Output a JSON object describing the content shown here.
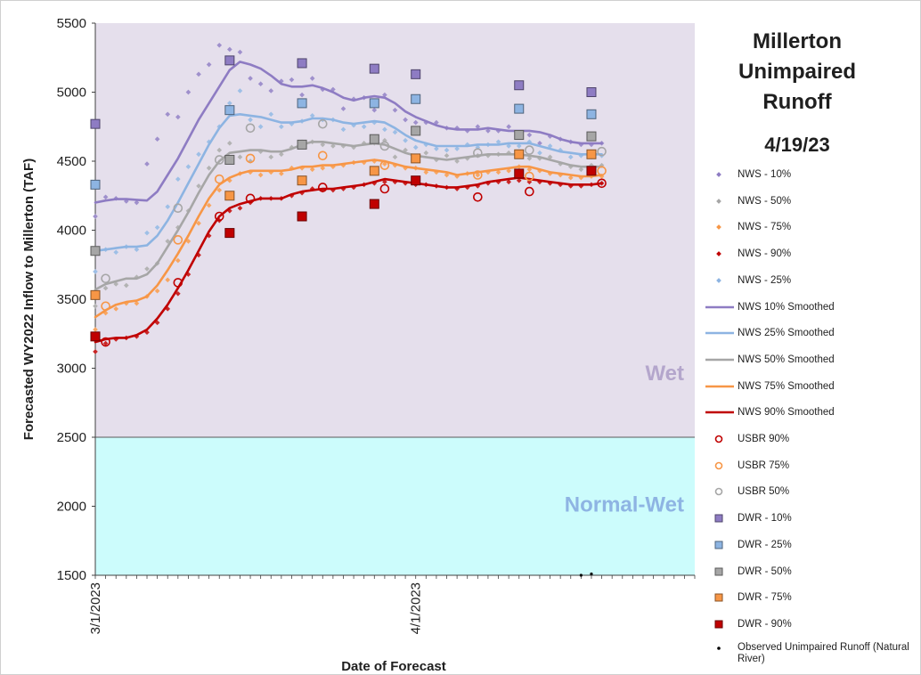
{
  "chart_data": {
    "type": "line",
    "title_lines": [
      "Millerton",
      "Unimpaired",
      "Runoff"
    ],
    "forecast_date": "4/19/23",
    "xlabel": "Date of Forecast",
    "ylabel": "Forecasted WY2022 Inflow to Millerton (TAF)",
    "ylim": [
      1500,
      5500
    ],
    "yticks": [
      1500,
      2000,
      2500,
      3000,
      3500,
      4000,
      4500,
      5000,
      5500
    ],
    "xlim": [
      "2023-03-01",
      "2023-04-28"
    ],
    "xtick_labels": [
      {
        "date": "2023-03-01",
        "label": "3/1/2023"
      },
      {
        "date": "2023-04-01",
        "label": "4/1/2023"
      }
    ],
    "bands": [
      {
        "label": "Wet",
        "from": 2500,
        "to": 5500,
        "color": "#e5dfec",
        "label_color": "#b4a6cc"
      },
      {
        "label": "Normal-Wet",
        "from": 1500,
        "to": 2500,
        "color": "#ccfcfc",
        "label_color": "#8eb4e3"
      }
    ],
    "colors": {
      "p10": "#8e7cc3",
      "p25": "#8db4e2",
      "p50": "#a6a6a6",
      "p75": "#f79646",
      "p90": "#c00000"
    },
    "nws_dates": [
      "2023-03-01",
      "2023-03-02",
      "2023-03-03",
      "2023-03-04",
      "2023-03-05",
      "2023-03-06",
      "2023-03-07",
      "2023-03-08",
      "2023-03-09",
      "2023-03-10",
      "2023-03-11",
      "2023-03-12",
      "2023-03-13",
      "2023-03-14",
      "2023-03-15",
      "2023-03-16",
      "2023-03-17",
      "2023-03-18",
      "2023-03-19",
      "2023-03-20",
      "2023-03-21",
      "2023-03-22",
      "2023-03-23",
      "2023-03-24",
      "2023-03-25",
      "2023-03-26",
      "2023-03-27",
      "2023-03-28",
      "2023-03-29",
      "2023-03-30",
      "2023-03-31",
      "2023-04-01",
      "2023-04-02",
      "2023-04-03",
      "2023-04-04",
      "2023-04-05",
      "2023-04-06",
      "2023-04-07",
      "2023-04-08",
      "2023-04-09",
      "2023-04-10",
      "2023-04-11",
      "2023-04-12",
      "2023-04-13",
      "2023-04-14",
      "2023-04-15",
      "2023-04-16",
      "2023-04-17",
      "2023-04-18",
      "2023-04-19"
    ],
    "smoothed_series": [
      {
        "name": "NWS 10% Smoothed",
        "key": "p10",
        "values": [
          4200,
          4215,
          4225,
          4225,
          4220,
          4215,
          4280,
          4400,
          4520,
          4660,
          4800,
          4920,
          5040,
          5160,
          5220,
          5200,
          5170,
          5120,
          5060,
          5040,
          5040,
          5050,
          5030,
          5000,
          4960,
          4940,
          4960,
          4970,
          4960,
          4920,
          4860,
          4820,
          4790,
          4760,
          4740,
          4730,
          4730,
          4730,
          4740,
          4730,
          4720,
          4720,
          4720,
          4710,
          4690,
          4660,
          4640,
          4630,
          4630,
          4630
        ]
      },
      {
        "name": "NWS 25% Smoothed",
        "key": "p25",
        "values": [
          3850,
          3860,
          3870,
          3880,
          3880,
          3890,
          3960,
          4070,
          4200,
          4340,
          4480,
          4620,
          4740,
          4830,
          4840,
          4830,
          4820,
          4800,
          4780,
          4780,
          4790,
          4810,
          4810,
          4800,
          4780,
          4770,
          4780,
          4790,
          4780,
          4740,
          4690,
          4650,
          4630,
          4610,
          4610,
          4610,
          4610,
          4620,
          4620,
          4620,
          4630,
          4630,
          4630,
          4610,
          4590,
          4570,
          4560,
          4550,
          4550,
          4550
        ]
      },
      {
        "name": "NWS 50% Smoothed",
        "key": "p50",
        "values": [
          3570,
          3610,
          3630,
          3650,
          3650,
          3680,
          3760,
          3880,
          4000,
          4130,
          4270,
          4400,
          4500,
          4560,
          4570,
          4580,
          4580,
          4570,
          4570,
          4590,
          4620,
          4640,
          4640,
          4630,
          4620,
          4610,
          4620,
          4630,
          4620,
          4590,
          4560,
          4540,
          4530,
          4520,
          4510,
          4520,
          4530,
          4540,
          4550,
          4550,
          4550,
          4550,
          4540,
          4530,
          4510,
          4490,
          4470,
          4460,
          4460,
          4460
        ]
      },
      {
        "name": "NWS 75% Smoothed",
        "key": "p75",
        "values": [
          3370,
          3420,
          3460,
          3480,
          3490,
          3520,
          3600,
          3710,
          3830,
          3960,
          4100,
          4230,
          4330,
          4380,
          4410,
          4430,
          4430,
          4430,
          4430,
          4440,
          4460,
          4460,
          4470,
          4470,
          4480,
          4490,
          4500,
          4510,
          4500,
          4480,
          4460,
          4450,
          4440,
          4430,
          4420,
          4400,
          4410,
          4420,
          4430,
          4440,
          4450,
          4460,
          4460,
          4440,
          4420,
          4410,
          4400,
          4390,
          4390,
          4400
        ]
      },
      {
        "name": "NWS 90% Smoothed",
        "key": "p90",
        "values": [
          3190,
          3210,
          3220,
          3220,
          3240,
          3280,
          3360,
          3460,
          3580,
          3710,
          3850,
          3990,
          4100,
          4160,
          4190,
          4210,
          4230,
          4230,
          4230,
          4260,
          4280,
          4290,
          4300,
          4300,
          4310,
          4320,
          4330,
          4350,
          4370,
          4360,
          4350,
          4340,
          4330,
          4320,
          4310,
          4310,
          4320,
          4330,
          4350,
          4360,
          4370,
          4380,
          4370,
          4360,
          4350,
          4340,
          4330,
          4330,
          4330,
          4340
        ]
      }
    ],
    "nws_points": [
      {
        "name": "NWS - 10%",
        "key": "p10",
        "values": [
          4100,
          4240,
          4230,
          4210,
          4200,
          4480,
          4660,
          4840,
          4820,
          5000,
          5130,
          5200,
          5340,
          5310,
          5290,
          5100,
          5060,
          5010,
          5080,
          5090,
          4980,
          5100,
          5020,
          5020,
          4880,
          4950,
          4960,
          4870,
          4980,
          4870,
          4800,
          4780,
          4780,
          4780,
          4740,
          4740,
          4720,
          4750,
          4720,
          4720,
          4750,
          4680,
          4690,
          4630,
          4680,
          4660,
          4640,
          4620,
          4620,
          4630
        ]
      },
      {
        "name": "NWS - 25%",
        "key": "p25",
        "values": [
          3700,
          3860,
          3840,
          3880,
          3860,
          3980,
          4020,
          4170,
          4370,
          4460,
          4550,
          4640,
          4750,
          4920,
          5010,
          4800,
          4750,
          4840,
          4750,
          4770,
          4790,
          4830,
          4800,
          4800,
          4730,
          4760,
          4750,
          4780,
          4730,
          4710,
          4650,
          4600,
          4620,
          4590,
          4580,
          4590,
          4620,
          4600,
          4620,
          4640,
          4610,
          4610,
          4640,
          4560,
          4610,
          4580,
          4530,
          4540,
          4530,
          4540
        ]
      },
      {
        "name": "NWS - 50%",
        "key": "p50",
        "values": [
          3450,
          3580,
          3610,
          3600,
          3660,
          3720,
          3760,
          3920,
          4020,
          4140,
          4320,
          4450,
          4580,
          4630,
          4530,
          4500,
          4570,
          4530,
          4550,
          4600,
          4640,
          4640,
          4620,
          4610,
          4610,
          4600,
          4630,
          4630,
          4650,
          4530,
          4580,
          4530,
          4560,
          4510,
          4540,
          4500,
          4520,
          4540,
          4540,
          4550,
          4560,
          4540,
          4520,
          4520,
          4530,
          4480,
          4460,
          4440,
          4470,
          4470
        ]
      },
      {
        "name": "NWS - 75%",
        "key": "p75",
        "values": [
          3280,
          3400,
          3430,
          3470,
          3470,
          3520,
          3560,
          3640,
          3780,
          3920,
          4050,
          4180,
          4290,
          4360,
          4410,
          4420,
          4400,
          4420,
          4410,
          4450,
          4450,
          4440,
          4450,
          4460,
          4470,
          4490,
          4490,
          4500,
          4480,
          4470,
          4450,
          4450,
          4420,
          4420,
          4400,
          4390,
          4410,
          4400,
          4420,
          4420,
          4430,
          4460,
          4440,
          4430,
          4410,
          4400,
          4380,
          4380,
          4390,
          4390
        ]
      },
      {
        "name": "NWS - 90%",
        "key": "p90",
        "values": [
          3120,
          3180,
          3210,
          3220,
          3230,
          3260,
          3330,
          3430,
          3540,
          3680,
          3820,
          3960,
          4070,
          4140,
          4160,
          4200,
          4230,
          4230,
          4230,
          4250,
          4270,
          4300,
          4290,
          4290,
          4300,
          4310,
          4330,
          4340,
          4350,
          4350,
          4340,
          4330,
          4330,
          4320,
          4310,
          4300,
          4310,
          4320,
          4340,
          4350,
          4350,
          4360,
          4350,
          4350,
          4340,
          4330,
          4320,
          4320,
          4330,
          4340
        ]
      }
    ],
    "usbr": [
      {
        "name": "USBR 90%",
        "key": "p90",
        "points": [
          [
            "2023-03-02",
            3190
          ],
          [
            "2023-03-09",
            3620
          ],
          [
            "2023-03-13",
            4100
          ],
          [
            "2023-03-16",
            4230
          ],
          [
            "2023-03-23",
            4310
          ],
          [
            "2023-03-29",
            4300
          ],
          [
            "2023-04-07",
            4240
          ],
          [
            "2023-04-12",
            4280
          ],
          [
            "2023-04-19",
            4340
          ]
        ]
      },
      {
        "name": "USBR 75%",
        "key": "p75",
        "points": [
          [
            "2023-03-02",
            3450
          ],
          [
            "2023-03-09",
            3930
          ],
          [
            "2023-03-13",
            4370
          ],
          [
            "2023-03-16",
            4520
          ],
          [
            "2023-03-23",
            4540
          ],
          [
            "2023-03-29",
            4470
          ],
          [
            "2023-04-07",
            4400
          ],
          [
            "2023-04-12",
            4390
          ],
          [
            "2023-04-19",
            4430
          ]
        ]
      },
      {
        "name": "USBR 50%",
        "key": "p50",
        "points": [
          [
            "2023-03-02",
            3650
          ],
          [
            "2023-03-09",
            4160
          ],
          [
            "2023-03-13",
            4510
          ],
          [
            "2023-03-16",
            4740
          ],
          [
            "2023-03-23",
            4770
          ],
          [
            "2023-03-29",
            4610
          ],
          [
            "2023-04-07",
            4560
          ],
          [
            "2023-04-12",
            4580
          ],
          [
            "2023-04-19",
            4570
          ]
        ]
      }
    ],
    "dwr": [
      {
        "name": "DWR - 10%",
        "key": "p10",
        "points": [
          [
            "2023-03-01",
            4770
          ],
          [
            "2023-03-14",
            5230
          ],
          [
            "2023-03-21",
            5210
          ],
          [
            "2023-03-28",
            5170
          ],
          [
            "2023-04-01",
            5130
          ],
          [
            "2023-04-11",
            5050
          ],
          [
            "2023-04-18",
            5000
          ]
        ]
      },
      {
        "name": "DWR - 25%",
        "key": "p25",
        "points": [
          [
            "2023-03-01",
            4330
          ],
          [
            "2023-03-14",
            4870
          ],
          [
            "2023-03-21",
            4920
          ],
          [
            "2023-03-28",
            4920
          ],
          [
            "2023-04-01",
            4950
          ],
          [
            "2023-04-11",
            4880
          ],
          [
            "2023-04-18",
            4840
          ]
        ]
      },
      {
        "name": "DWR - 50%",
        "key": "p50",
        "points": [
          [
            "2023-03-01",
            3850
          ],
          [
            "2023-03-14",
            4510
          ],
          [
            "2023-03-21",
            4620
          ],
          [
            "2023-03-28",
            4660
          ],
          [
            "2023-04-01",
            4720
          ],
          [
            "2023-04-11",
            4690
          ],
          [
            "2023-04-18",
            4680
          ]
        ]
      },
      {
        "name": "DWR - 75%",
        "key": "p75",
        "points": [
          [
            "2023-03-01",
            3530
          ],
          [
            "2023-03-14",
            4250
          ],
          [
            "2023-03-21",
            4360
          ],
          [
            "2023-03-28",
            4430
          ],
          [
            "2023-04-01",
            4520
          ],
          [
            "2023-04-11",
            4550
          ],
          [
            "2023-04-18",
            4550
          ]
        ]
      },
      {
        "name": "DWR - 90%",
        "key": "p90",
        "points": [
          [
            "2023-03-01",
            3230
          ],
          [
            "2023-03-14",
            3980
          ],
          [
            "2023-03-21",
            4100
          ],
          [
            "2023-03-28",
            4190
          ],
          [
            "2023-04-01",
            4360
          ],
          [
            "2023-04-11",
            4410
          ],
          [
            "2023-04-18",
            4430
          ]
        ]
      }
    ],
    "observed": {
      "name": "Observed Unimpaired Runoff (Natural River)",
      "points": [
        [
          "2023-04-17",
          1500
        ],
        [
          "2023-04-18",
          1510
        ]
      ]
    },
    "legend": [
      {
        "label": "NWS - 10%",
        "type": "diamond",
        "key": "p10"
      },
      {
        "label": "NWS - 50%",
        "type": "diamond",
        "key": "p50"
      },
      {
        "label": "NWS - 75%",
        "type": "diamond",
        "key": "p75"
      },
      {
        "label": "NWS - 90%",
        "type": "diamond",
        "key": "p90"
      },
      {
        "label": "NWS - 25%",
        "type": "diamond",
        "key": "p25"
      },
      {
        "label": "NWS 10% Smoothed",
        "type": "line",
        "key": "p10"
      },
      {
        "label": "NWS 25% Smoothed",
        "type": "line",
        "key": "p25"
      },
      {
        "label": "NWS 50% Smoothed",
        "type": "line",
        "key": "p50"
      },
      {
        "label": "NWS 75% Smoothed",
        "type": "line",
        "key": "p75"
      },
      {
        "label": "NWS 90% Smoothed",
        "type": "line",
        "key": "p90"
      },
      {
        "label": "USBR 90%",
        "type": "circle",
        "key": "p90"
      },
      {
        "label": "USBR 75%",
        "type": "circle",
        "key": "p75"
      },
      {
        "label": "USBR 50%",
        "type": "circle",
        "key": "p50"
      },
      {
        "label": "DWR - 10%",
        "type": "square",
        "key": "p10"
      },
      {
        "label": "DWR - 25%",
        "type": "square",
        "key": "p25"
      },
      {
        "label": "DWR - 50%",
        "type": "square",
        "key": "p50"
      },
      {
        "label": "DWR - 75%",
        "type": "square",
        "key": "p75"
      },
      {
        "label": "DWR - 90%",
        "type": "square",
        "key": "p90"
      },
      {
        "label": "Observed Unimpaired Runoff (Natural River)",
        "type": "dot",
        "key": "obs"
      }
    ]
  }
}
